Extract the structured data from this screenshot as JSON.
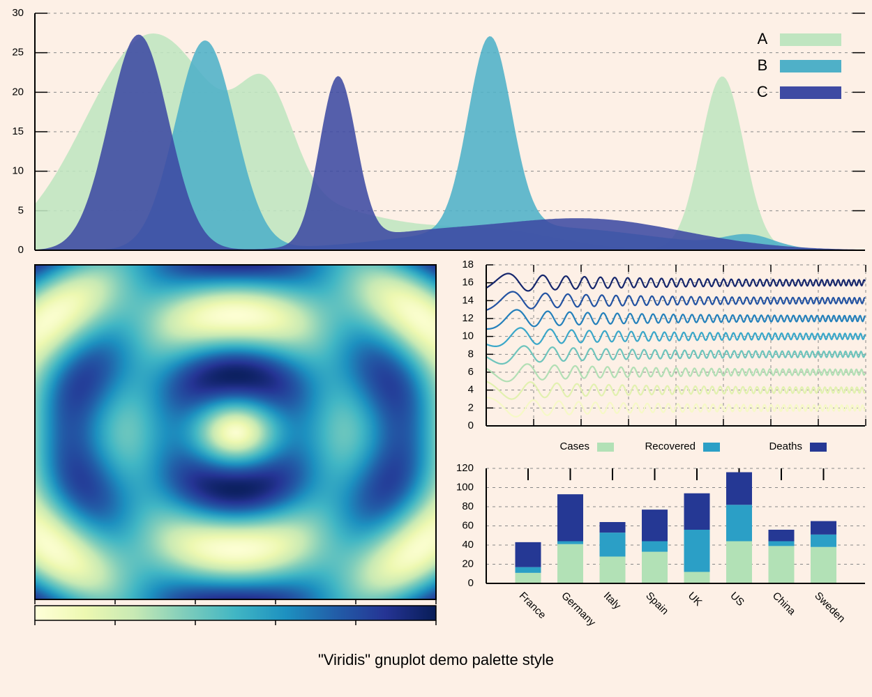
{
  "caption": "\"Viridis\" gnuplot demo palette style",
  "colors": {
    "background": "#fdf0e6",
    "A": "#bfe5c0",
    "B": "#4fb0c8",
    "C": "#3e4aa3",
    "cases": "#b2e1b6",
    "recovered": "#2b9fc6",
    "deaths": "#253894",
    "palette": [
      "#ffffd9",
      "#edf8b1",
      "#c7e9b4",
      "#7fcdbb",
      "#41b6c4",
      "#1d91c0",
      "#225ea8",
      "#253494",
      "#081d58"
    ]
  },
  "chart_data": [
    {
      "id": "peaks",
      "type": "area",
      "x_range": [
        0,
        100
      ],
      "ylim": [
        0,
        30
      ],
      "yticks": [
        "0",
        "5",
        "10",
        "15",
        "20",
        "25",
        "30"
      ],
      "grid": true,
      "legend_position": "top-right",
      "series": [
        {
          "name": "A",
          "color": "#bfe5c0",
          "components": [
            [
              14,
              27,
              8
            ],
            [
              28,
              12,
              3.2
            ],
            [
              34,
              5,
              9
            ],
            [
              55,
              2.5,
              8
            ],
            [
              82.8,
              22,
              2.6
            ]
          ]
        },
        {
          "name": "B",
          "color": "#4fb0c8",
          "components": [
            [
              20.5,
              26.5,
              3.6
            ],
            [
              54.8,
              24.3,
              2.6
            ],
            [
              60,
              3,
              14
            ],
            [
              86,
              1.5,
              3
            ]
          ]
        },
        {
          "name": "C",
          "color": "#3e4aa3",
          "components": [
            [
              12.5,
              27.3,
              3.6
            ],
            [
              36.5,
              21,
              2.2
            ],
            [
              66,
              4,
              12
            ],
            [
              45,
              1.5,
              8
            ]
          ]
        }
      ]
    },
    {
      "id": "heatmap",
      "type": "heatmap",
      "function": "cos(r) pattern over an elliptical radius",
      "colorbar": true
    },
    {
      "id": "waves",
      "type": "line",
      "ylim": [
        0,
        18
      ],
      "yticks": [
        "0",
        "2",
        "4",
        "6",
        "8",
        "10",
        "12",
        "14",
        "16",
        "18"
      ],
      "grid": true,
      "series": [
        {
          "offset": 2,
          "color": "#f6f9c7"
        },
        {
          "offset": 4,
          "color": "#e2f1b0"
        },
        {
          "offset": 6,
          "color": "#b2dfb4"
        },
        {
          "offset": 8,
          "color": "#6ec4bc"
        },
        {
          "offset": 10,
          "color": "#3aa7c9"
        },
        {
          "offset": 12,
          "color": "#2480bb"
        },
        {
          "offset": 14,
          "color": "#2353a2"
        },
        {
          "offset": 16,
          "color": "#15266c"
        }
      ]
    },
    {
      "id": "stacked",
      "type": "bar",
      "stacked": true,
      "ylim": [
        0,
        120
      ],
      "yticks": [
        "0",
        "20",
        "40",
        "60",
        "80",
        "100",
        "120"
      ],
      "grid": true,
      "legend_position": "top",
      "categories": [
        "France",
        "Germany",
        "Italy",
        "Spain",
        "UK",
        "US",
        "China",
        "Sweden"
      ],
      "series": [
        {
          "name": "Cases",
          "color": "#b2e1b6",
          "values": [
            11,
            41,
            28,
            33,
            12,
            44,
            39,
            38
          ]
        },
        {
          "name": "Recovered",
          "color": "#2b9fc6",
          "values": [
            6,
            3,
            25,
            11,
            44,
            38,
            5,
            13
          ]
        },
        {
          "name": "Deaths",
          "color": "#253894",
          "values": [
            26,
            49,
            11,
            33,
            38,
            34,
            12,
            14
          ]
        }
      ]
    }
  ]
}
